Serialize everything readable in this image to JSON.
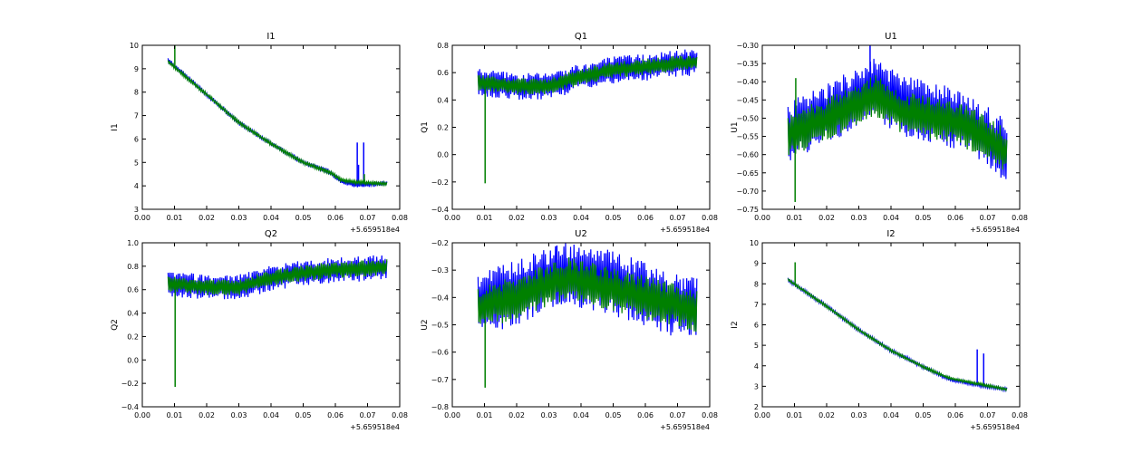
{
  "figure": {
    "series_colors": [
      "#0000ff",
      "#008000"
    ]
  },
  "chart_data": [
    {
      "type": "line",
      "title": "I1",
      "ylabel": "I1",
      "xlabel": "",
      "x_offset_label": "+5.659518e4",
      "xlim": [
        0.0,
        0.08
      ],
      "ylim": [
        3,
        10
      ],
      "xticks": [
        "0.00",
        "0.01",
        "0.02",
        "0.03",
        "0.04",
        "0.05",
        "0.06",
        "0.07",
        "0.08"
      ],
      "yticks": [
        "3",
        "4",
        "5",
        "6",
        "7",
        "8",
        "9",
        "10"
      ],
      "x_start": 0.008,
      "x_end": 0.076,
      "grid": false,
      "series": [
        {
          "name": "blue",
          "color": "#0000ff",
          "trend": [
            [
              0.008,
              9.35
            ],
            [
              0.02,
              7.9
            ],
            [
              0.03,
              6.7
            ],
            [
              0.04,
              5.8
            ],
            [
              0.05,
              5.0
            ],
            [
              0.058,
              4.6
            ],
            [
              0.062,
              4.2
            ],
            [
              0.066,
              4.05
            ],
            [
              0.076,
              4.1
            ]
          ],
          "noise": 0.12,
          "spikes": [
            [
              0.0668,
              5.85
            ],
            [
              0.0688,
              5.85
            ],
            [
              0.0672,
              4.9
            ]
          ]
        },
        {
          "name": "green",
          "color": "#008000",
          "trend": [
            [
              0.008,
              9.3
            ],
            [
              0.02,
              7.9
            ],
            [
              0.03,
              6.7
            ],
            [
              0.04,
              5.8
            ],
            [
              0.05,
              5.0
            ],
            [
              0.058,
              4.6
            ],
            [
              0.062,
              4.25
            ],
            [
              0.066,
              4.15
            ],
            [
              0.076,
              4.1
            ]
          ],
          "noise": 0.08,
          "spikes": [
            [
              0.0101,
              10.0
            ],
            [
              0.069,
              4.5
            ]
          ]
        }
      ]
    },
    {
      "type": "line",
      "title": "Q1",
      "ylabel": "Q1",
      "xlabel": "",
      "x_offset_label": "+5.659518e4",
      "xlim": [
        0.0,
        0.08
      ],
      "ylim": [
        -0.4,
        0.8
      ],
      "xticks": [
        "0.00",
        "0.01",
        "0.02",
        "0.03",
        "0.04",
        "0.05",
        "0.06",
        "0.07",
        "0.08"
      ],
      "yticks": [
        "−0.4",
        "−0.2",
        "0.0",
        "0.2",
        "0.4",
        "0.6",
        "0.8"
      ],
      "x_start": 0.008,
      "x_end": 0.076,
      "grid": false,
      "series": [
        {
          "name": "blue",
          "color": "#0000ff",
          "trend": [
            [
              0.008,
              0.53
            ],
            [
              0.02,
              0.5
            ],
            [
              0.03,
              0.5
            ],
            [
              0.04,
              0.57
            ],
            [
              0.05,
              0.62
            ],
            [
              0.06,
              0.64
            ],
            [
              0.076,
              0.68
            ]
          ],
          "noise": 0.1,
          "spikes": []
        },
        {
          "name": "green",
          "color": "#008000",
          "trend": [
            [
              0.008,
              0.53
            ],
            [
              0.02,
              0.5
            ],
            [
              0.03,
              0.5
            ],
            [
              0.04,
              0.57
            ],
            [
              0.05,
              0.62
            ],
            [
              0.06,
              0.64
            ],
            [
              0.076,
              0.68
            ]
          ],
          "noise": 0.06,
          "spikes": [
            [
              0.0102,
              -0.21
            ]
          ]
        }
      ]
    },
    {
      "type": "line",
      "title": "U1",
      "ylabel": "U1",
      "xlabel": "",
      "x_offset_label": "+5.659518e4",
      "xlim": [
        0.0,
        0.08
      ],
      "ylim": [
        -0.75,
        -0.3
      ],
      "xticks": [
        "0.00",
        "0.01",
        "0.02",
        "0.03",
        "0.04",
        "0.05",
        "0.06",
        "0.07",
        "0.08"
      ],
      "yticks": [
        "−0.75",
        "−0.70",
        "−0.65",
        "−0.60",
        "−0.55",
        "−0.50",
        "−0.45",
        "−0.40",
        "−0.35",
        "−0.30"
      ],
      "x_start": 0.008,
      "x_end": 0.076,
      "grid": false,
      "series": [
        {
          "name": "blue",
          "color": "#0000ff",
          "trend": [
            [
              0.008,
              -0.54
            ],
            [
              0.02,
              -0.49
            ],
            [
              0.03,
              -0.44
            ],
            [
              0.035,
              -0.42
            ],
            [
              0.045,
              -0.47
            ],
            [
              0.055,
              -0.49
            ],
            [
              0.065,
              -0.52
            ],
            [
              0.076,
              -0.59
            ]
          ],
          "noise": 0.085,
          "spikes": [
            [
              0.0335,
              -0.3
            ]
          ]
        },
        {
          "name": "green",
          "color": "#008000",
          "trend": [
            [
              0.008,
              -0.55
            ],
            [
              0.02,
              -0.5
            ],
            [
              0.03,
              -0.46
            ],
            [
              0.035,
              -0.44
            ],
            [
              0.045,
              -0.49
            ],
            [
              0.055,
              -0.5
            ],
            [
              0.065,
              -0.53
            ],
            [
              0.076,
              -0.59
            ]
          ],
          "noise": 0.06,
          "spikes": [
            [
              0.0102,
              -0.73
            ],
            [
              0.0104,
              -0.39
            ]
          ]
        }
      ]
    },
    {
      "type": "line",
      "title": "Q2",
      "ylabel": "Q2",
      "xlabel": "",
      "x_offset_label": "+5.659518e4",
      "xlim": [
        0.0,
        0.08
      ],
      "ylim": [
        -0.4,
        1.0
      ],
      "xticks": [
        "0.00",
        "0.01",
        "0.02",
        "0.03",
        "0.04",
        "0.05",
        "0.06",
        "0.07",
        "0.08"
      ],
      "yticks": [
        "−0.4",
        "−0.2",
        "0.0",
        "0.2",
        "0.4",
        "0.6",
        "0.8",
        "1.0"
      ],
      "x_start": 0.008,
      "x_end": 0.076,
      "grid": false,
      "series": [
        {
          "name": "blue",
          "color": "#0000ff",
          "trend": [
            [
              0.008,
              0.65
            ],
            [
              0.02,
              0.62
            ],
            [
              0.03,
              0.62
            ],
            [
              0.04,
              0.7
            ],
            [
              0.05,
              0.74
            ],
            [
              0.06,
              0.77
            ],
            [
              0.076,
              0.79
            ]
          ],
          "noise": 0.11,
          "spikes": []
        },
        {
          "name": "green",
          "color": "#008000",
          "trend": [
            [
              0.008,
              0.65
            ],
            [
              0.02,
              0.62
            ],
            [
              0.03,
              0.62
            ],
            [
              0.04,
              0.7
            ],
            [
              0.05,
              0.74
            ],
            [
              0.06,
              0.77
            ],
            [
              0.076,
              0.79
            ]
          ],
          "noise": 0.07,
          "spikes": [
            [
              0.0102,
              -0.23
            ]
          ]
        }
      ]
    },
    {
      "type": "line",
      "title": "U2",
      "ylabel": "U2",
      "xlabel": "",
      "x_offset_label": "+5.659518e4",
      "xlim": [
        0.0,
        0.08
      ],
      "ylim": [
        -0.8,
        -0.2
      ],
      "xticks": [
        "0.00",
        "0.01",
        "0.02",
        "0.03",
        "0.04",
        "0.05",
        "0.06",
        "0.07",
        "0.08"
      ],
      "yticks": [
        "−0.8",
        "−0.7",
        "−0.6",
        "−0.5",
        "−0.4",
        "−0.3",
        "−0.2"
      ],
      "x_start": 0.008,
      "x_end": 0.076,
      "grid": false,
      "series": [
        {
          "name": "blue",
          "color": "#0000ff",
          "trend": [
            [
              0.008,
              -0.43
            ],
            [
              0.02,
              -0.38
            ],
            [
              0.035,
              -0.31
            ],
            [
              0.05,
              -0.35
            ],
            [
              0.06,
              -0.39
            ],
            [
              0.076,
              -0.45
            ]
          ],
          "noise": 0.12,
          "spikes": [
            [
              0.0325,
              -0.21
            ]
          ]
        },
        {
          "name": "green",
          "color": "#008000",
          "trend": [
            [
              0.008,
              -0.44
            ],
            [
              0.02,
              -0.4
            ],
            [
              0.035,
              -0.33
            ],
            [
              0.05,
              -0.37
            ],
            [
              0.06,
              -0.4
            ],
            [
              0.076,
              -0.45
            ]
          ],
          "noise": 0.08,
          "spikes": [
            [
              0.0102,
              -0.73
            ]
          ]
        }
      ]
    },
    {
      "type": "line",
      "title": "I2",
      "ylabel": "I2",
      "xlabel": "",
      "x_offset_label": "+5.659518e4",
      "xlim": [
        0.0,
        0.08
      ],
      "ylim": [
        2,
        10
      ],
      "xticks": [
        "0.00",
        "0.01",
        "0.02",
        "0.03",
        "0.04",
        "0.05",
        "0.06",
        "0.07",
        "0.08"
      ],
      "yticks": [
        "2",
        "3",
        "4",
        "5",
        "6",
        "7",
        "8",
        "9",
        "10"
      ],
      "x_start": 0.008,
      "x_end": 0.076,
      "grid": false,
      "series": [
        {
          "name": "blue",
          "color": "#0000ff",
          "trend": [
            [
              0.008,
              8.2
            ],
            [
              0.02,
              6.9
            ],
            [
              0.03,
              5.75
            ],
            [
              0.04,
              4.75
            ],
            [
              0.05,
              3.95
            ],
            [
              0.058,
              3.35
            ],
            [
              0.066,
              3.1
            ],
            [
              0.076,
              2.85
            ]
          ],
          "noise": 0.1,
          "spikes": [
            [
              0.0668,
              4.8
            ],
            [
              0.0688,
              4.6
            ]
          ]
        },
        {
          "name": "green",
          "color": "#008000",
          "trend": [
            [
              0.008,
              8.2
            ],
            [
              0.02,
              6.9
            ],
            [
              0.03,
              5.75
            ],
            [
              0.04,
              4.75
            ],
            [
              0.05,
              3.95
            ],
            [
              0.058,
              3.4
            ],
            [
              0.066,
              3.15
            ],
            [
              0.076,
              2.85
            ]
          ],
          "noise": 0.07,
          "spikes": [
            [
              0.0102,
              9.05
            ]
          ]
        }
      ]
    }
  ]
}
